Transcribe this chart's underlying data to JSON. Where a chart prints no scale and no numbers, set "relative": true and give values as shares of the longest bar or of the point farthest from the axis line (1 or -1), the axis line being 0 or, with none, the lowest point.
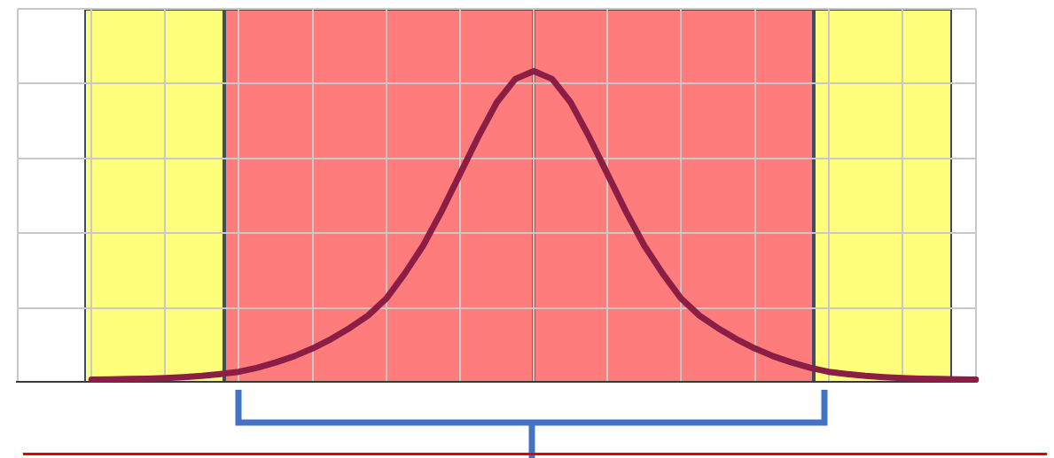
{
  "chart_data": {
    "type": "line",
    "relative": true,
    "grid": true,
    "marker": "none",
    "categories": [
      null,
      null,
      null,
      null,
      null,
      null,
      null,
      null,
      null,
      null,
      null,
      null,
      null,
      null,
      null,
      null,
      null,
      null,
      null,
      null,
      null,
      null,
      null,
      null,
      null,
      null,
      null,
      null,
      null,
      null,
      null,
      null,
      null,
      null,
      null,
      null,
      null,
      null,
      null,
      null,
      null,
      null,
      null,
      null,
      null,
      null,
      null,
      null,
      null,
      null,
      null,
      null,
      null
    ],
    "series": [
      {
        "color": "#8b1e45",
        "values": [
          null,
          null,
          null,
          null,
          0.01,
          0.011,
          0.012,
          0.013,
          0.015,
          0.018,
          0.022,
          0.028,
          0.035,
          0.048,
          0.065,
          0.085,
          0.11,
          0.14,
          0.175,
          0.215,
          0.27,
          0.35,
          0.44,
          0.55,
          0.67,
          0.79,
          0.9,
          0.975,
          1,
          0.975,
          0.9,
          0.79,
          0.67,
          0.55,
          0.44,
          0.35,
          0.27,
          0.215,
          0.175,
          0.14,
          0.11,
          0.085,
          0.065,
          0.048,
          0.035,
          0.028,
          0.022,
          0.018,
          0.015,
          0.013,
          0.012,
          0.011,
          0.01
        ]
      }
    ]
  }
}
